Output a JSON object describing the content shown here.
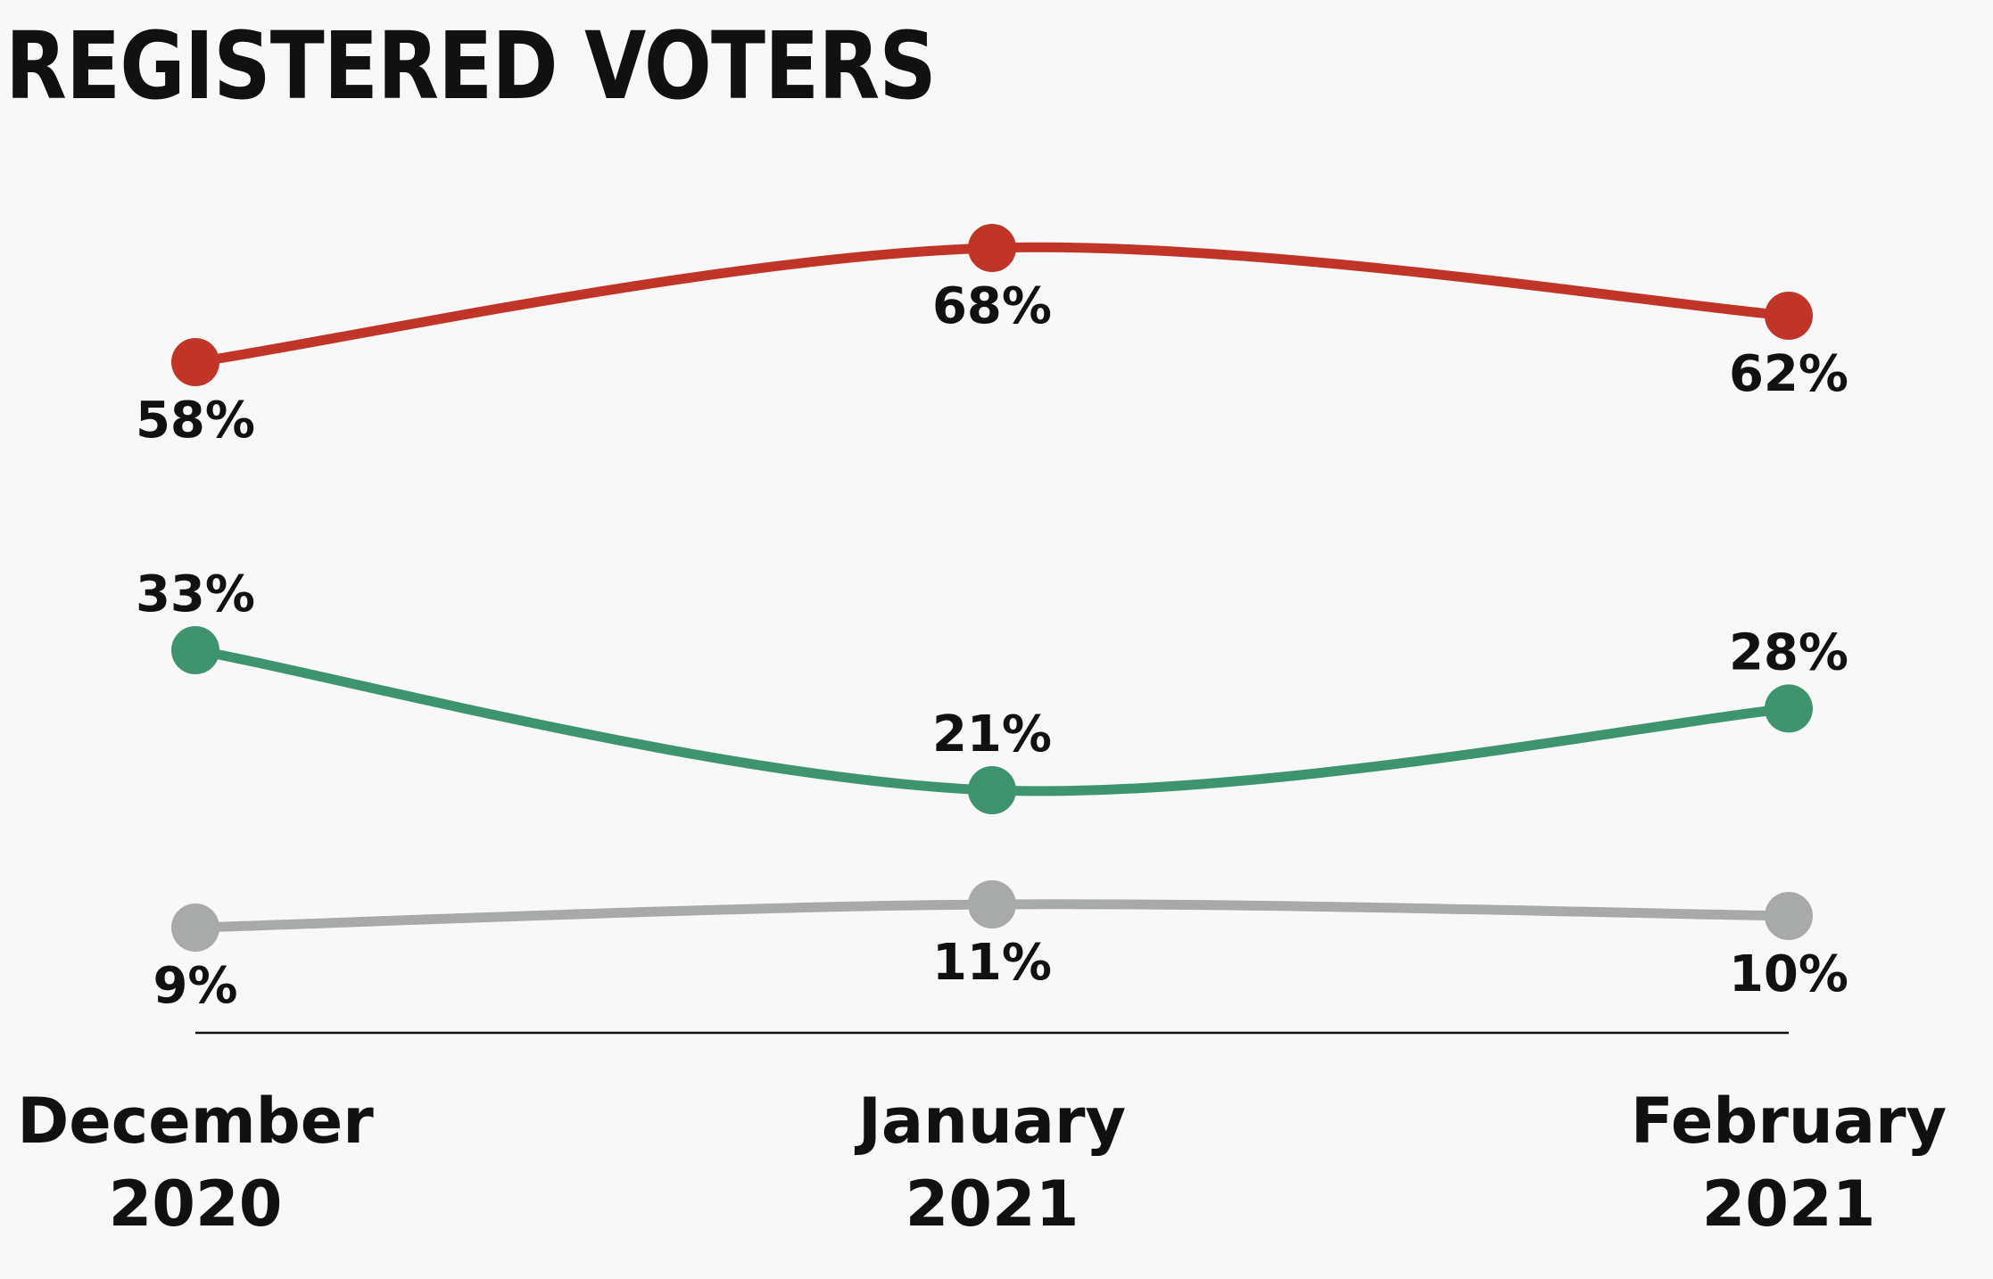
{
  "chart_data": {
    "type": "line",
    "title": "REGISTERED VOTERS",
    "xlabel": "",
    "ylabel": "",
    "categories": [
      [
        "December",
        "2020"
      ],
      [
        "January",
        "2021"
      ],
      [
        "February",
        "2021"
      ]
    ],
    "ylim": [
      0,
      100
    ],
    "grid": false,
    "legend": "none",
    "series": [
      {
        "values": [
          58,
          68,
          62
        ],
        "labels": [
          "58%",
          "68%",
          "62%"
        ],
        "color": "#c13528",
        "label_position": [
          "below",
          "below",
          "below"
        ]
      },
      {
        "values": [
          33,
          21,
          28
        ],
        "labels": [
          "33%",
          "21%",
          "28%"
        ],
        "color": "#3f9470",
        "label_position": [
          "above",
          "above",
          "above"
        ]
      },
      {
        "values": [
          9,
          11,
          10
        ],
        "labels": [
          "9%",
          "11%",
          "10%"
        ],
        "color": "#a7aaa8",
        "label_position": [
          "below",
          "below",
          "below"
        ]
      }
    ]
  }
}
